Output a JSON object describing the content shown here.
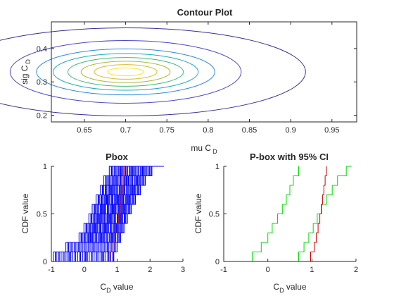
{
  "chart_data": [
    {
      "type": "contour",
      "title": "Contour Plot",
      "xlabel": "mu C",
      "xlabel_sub": "D",
      "ylabel": "sig C",
      "ylabel_sub": "D",
      "xlim": [
        0.61,
        0.98
      ],
      "ylim": [
        0.18,
        0.48
      ],
      "xticks": [
        "0.65",
        "0.7",
        "0.75",
        "0.8",
        "0.85",
        "0.9",
        "0.95"
      ],
      "yticks": [
        "0.2",
        "0.3",
        "0.4"
      ],
      "center": {
        "mu": 0.7,
        "sig": 0.33
      },
      "levels": [
        {
          "rx": 0.022,
          "ry": 0.012,
          "color": "#f9e51e"
        },
        {
          "rx": 0.038,
          "ry": 0.022,
          "color": "#dfb82a"
        },
        {
          "rx": 0.054,
          "ry": 0.032,
          "color": "#a6be3b"
        },
        {
          "rx": 0.07,
          "ry": 0.043,
          "color": "#3dbc74"
        },
        {
          "rx": 0.088,
          "ry": 0.055,
          "color": "#19abc1"
        },
        {
          "rx": 0.108,
          "ry": 0.069,
          "color": "#2c89e0"
        },
        {
          "rx": 0.14,
          "ry": 0.094,
          "color": "#4848cc"
        },
        {
          "rx": 0.218,
          "ry": 0.132,
          "color": "#3a2d96"
        }
      ]
    },
    {
      "type": "step",
      "title": "Pbox",
      "xlabel": "C",
      "xlabel_sub": "D",
      "xlabel_suffix": " value",
      "ylabel": "CDF value",
      "xlim": [
        -1,
        3
      ],
      "ylim": [
        0,
        1
      ],
      "xticks": [
        "-1",
        "0",
        "1",
        "2",
        "3"
      ],
      "yticks": [
        "0",
        "0.5",
        "1"
      ],
      "band": {
        "color": "#0000ff",
        "count": 40,
        "left_edges": [
          [
            -0.88,
            0
          ],
          [
            -0.88,
            0.1
          ],
          [
            -0.5,
            0.1
          ],
          [
            -0.5,
            0.2
          ],
          [
            -0.1,
            0.2
          ],
          [
            -0.1,
            0.3
          ],
          [
            0.05,
            0.3
          ],
          [
            0.05,
            0.4
          ],
          [
            0.2,
            0.4
          ],
          [
            0.2,
            0.5
          ],
          [
            0.3,
            0.5
          ],
          [
            0.3,
            0.6
          ],
          [
            0.42,
            0.6
          ],
          [
            0.42,
            0.7
          ],
          [
            0.55,
            0.7
          ],
          [
            0.55,
            0.8
          ],
          [
            0.65,
            0.8
          ],
          [
            0.65,
            0.9
          ],
          [
            0.82,
            0.9
          ],
          [
            0.82,
            1
          ]
        ],
        "right_edges": [
          [
            0.9,
            0
          ],
          [
            0.9,
            0.1
          ],
          [
            1.0,
            0.1
          ],
          [
            1.0,
            0.2
          ],
          [
            1.1,
            0.2
          ],
          [
            1.1,
            0.3
          ],
          [
            1.2,
            0.3
          ],
          [
            1.2,
            0.4
          ],
          [
            1.3,
            0.4
          ],
          [
            1.3,
            0.5
          ],
          [
            1.42,
            0.5
          ],
          [
            1.42,
            0.6
          ],
          [
            1.55,
            0.6
          ],
          [
            1.55,
            0.7
          ],
          [
            1.7,
            0.7
          ],
          [
            1.7,
            0.8
          ],
          [
            1.85,
            0.8
          ],
          [
            1.85,
            0.9
          ],
          [
            2.05,
            0.9
          ],
          [
            2.05,
            1
          ],
          [
            2.42,
            1
          ]
        ]
      },
      "series": [
        {
          "color": "#cc0000",
          "points": [
            [
              0.78,
              0
            ],
            [
              0.78,
              0.1
            ],
            [
              0.88,
              0.1
            ],
            [
              0.88,
              0.2
            ],
            [
              0.95,
              0.2
            ],
            [
              0.95,
              0.3
            ],
            [
              1.0,
              0.3
            ],
            [
              1.0,
              0.4
            ],
            [
              1.05,
              0.4
            ],
            [
              1.05,
              0.5
            ],
            [
              1.09,
              0.5
            ],
            [
              1.09,
              0.6
            ],
            [
              1.12,
              0.6
            ],
            [
              1.12,
              0.7
            ],
            [
              1.15,
              0.7
            ],
            [
              1.15,
              0.8
            ],
            [
              1.18,
              0.8
            ],
            [
              1.18,
              0.9
            ],
            [
              1.22,
              0.9
            ],
            [
              1.22,
              1
            ]
          ]
        }
      ]
    },
    {
      "type": "step",
      "title": "P-box with 95% CI",
      "xlabel": "C",
      "xlabel_sub": "D",
      "xlabel_suffix": " value",
      "ylabel": "CDF value",
      "xlim": [
        -1,
        2
      ],
      "ylim": [
        0,
        1
      ],
      "xticks": [
        "-1",
        "0",
        "1",
        "2"
      ],
      "yticks": [
        "0",
        "0.5",
        "1"
      ],
      "series": [
        {
          "color": "#00dd00",
          "points": [
            [
              -0.35,
              0
            ],
            [
              -0.35,
              0.1
            ],
            [
              -0.15,
              0.1
            ],
            [
              -0.15,
              0.2
            ],
            [
              0.0,
              0.2
            ],
            [
              0.0,
              0.3
            ],
            [
              0.1,
              0.3
            ],
            [
              0.1,
              0.4
            ],
            [
              0.22,
              0.4
            ],
            [
              0.22,
              0.5
            ],
            [
              0.33,
              0.5
            ],
            [
              0.33,
              0.6
            ],
            [
              0.42,
              0.6
            ],
            [
              0.42,
              0.7
            ],
            [
              0.5,
              0.7
            ],
            [
              0.5,
              0.8
            ],
            [
              0.58,
              0.8
            ],
            [
              0.58,
              0.9
            ],
            [
              0.7,
              0.9
            ],
            [
              0.7,
              1
            ]
          ]
        },
        {
          "color": "#00dd00",
          "points": [
            [
              0.7,
              0
            ],
            [
              0.7,
              0.1
            ],
            [
              0.82,
              0.1
            ],
            [
              0.82,
              0.2
            ],
            [
              0.93,
              0.2
            ],
            [
              0.93,
              0.3
            ],
            [
              1.03,
              0.3
            ],
            [
              1.03,
              0.4
            ],
            [
              1.12,
              0.4
            ],
            [
              1.12,
              0.5
            ],
            [
              1.22,
              0.5
            ],
            [
              1.22,
              0.6
            ],
            [
              1.33,
              0.6
            ],
            [
              1.33,
              0.7
            ],
            [
              1.46,
              0.7
            ],
            [
              1.46,
              0.8
            ],
            [
              1.58,
              0.8
            ],
            [
              1.58,
              0.9
            ],
            [
              1.78,
              0.9
            ],
            [
              1.78,
              1
            ],
            [
              1.9,
              1
            ]
          ]
        },
        {
          "color": "#cc0000",
          "points": [
            [
              0.97,
              0
            ],
            [
              0.97,
              0.1
            ],
            [
              1.05,
              0.1
            ],
            [
              1.05,
              0.2
            ],
            [
              1.1,
              0.2
            ],
            [
              1.1,
              0.3
            ],
            [
              1.14,
              0.3
            ],
            [
              1.14,
              0.4
            ],
            [
              1.18,
              0.4
            ],
            [
              1.18,
              0.5
            ],
            [
              1.21,
              0.5
            ],
            [
              1.21,
              0.6
            ],
            [
              1.24,
              0.6
            ],
            [
              1.24,
              0.7
            ],
            [
              1.27,
              0.7
            ],
            [
              1.27,
              0.8
            ],
            [
              1.3,
              0.8
            ],
            [
              1.3,
              0.9
            ],
            [
              1.33,
              0.9
            ],
            [
              1.33,
              1
            ]
          ]
        }
      ]
    }
  ]
}
